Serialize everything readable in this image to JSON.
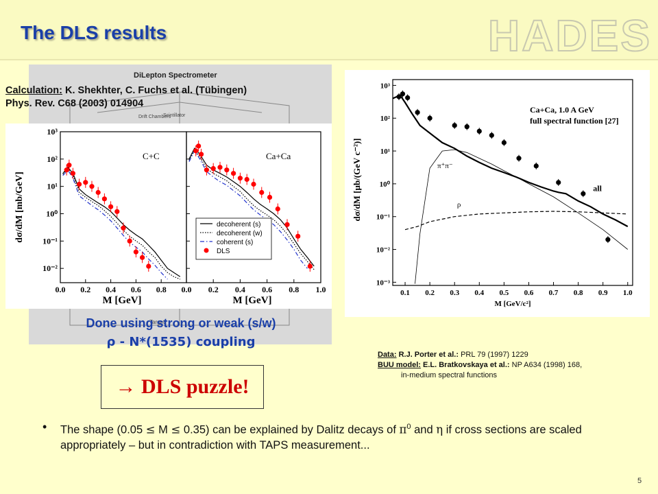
{
  "slide": {
    "title": "The DLS results",
    "logo_text": "HADES",
    "detector_title": "DiLepton Spectrometer",
    "detector_labels": [
      "Scintillator",
      "Drift Chambers"
    ],
    "detector_label_bottom": "Target",
    "calc_label": "Calculation:",
    "calc_authors": "K. Shekhter, C. Fuchs et al. (Tübingen)",
    "calc_ref": "Phys. Rev. C68 (2003) 014904",
    "caption_line1": "Done using strong or weak (s/w)",
    "caption_line2": "ρ - N*(1535) coupling",
    "refs": {
      "data_label": "Data:",
      "data_authors": "R.J. Porter et al.:",
      "data_journal": "PRL 79 (1997) 1229",
      "buu_label": "BUU model:",
      "buu_authors": "E.L. Bratkovskaya et al.:",
      "buu_journal": "NP A634 (1998) 168,",
      "buu_note": "in-medium spectral functions"
    },
    "puzzle": "→ DLS puzzle!",
    "bullet": {
      "t1": "The shape (0.05 ",
      "le": "≤",
      "t2": " M ",
      "t3": " 0.35) can be explained by Dalitz decays of ",
      "pi": "π",
      "sup": "0",
      "t4": " and ",
      "eta": "η",
      "t5": " if cross sections are scaled appropriately – but in contradiction with TAPS measurement..."
    },
    "page_number": "5"
  },
  "colors": {
    "title": "#1a3fa8",
    "data_red": "#ff0000",
    "coherent_blue": "#2233cc",
    "puzzle_red": "#cc0000"
  },
  "chart_data": [
    {
      "type": "line",
      "panel": "C+C",
      "xlabel": "M [GeV]",
      "ylabel": "dσ/dM [mb/GeV]",
      "xlim": [
        0,
        1.0
      ],
      "ylim": [
        0.003,
        1000
      ],
      "yscale": "log",
      "xticks": [
        "0.0",
        "0.2",
        "0.4",
        "0.6",
        "0.8"
      ],
      "yticks": [
        "10⁻²",
        "10⁻¹",
        "10⁰",
        "10¹",
        "10²",
        "10³"
      ],
      "series": [
        {
          "name": "decoherent (s)",
          "style": "solid",
          "x": [
            0.02,
            0.06,
            0.1,
            0.15,
            0.2,
            0.25,
            0.3,
            0.35,
            0.4,
            0.45,
            0.5,
            0.55,
            0.6,
            0.65,
            0.7,
            0.75,
            0.8,
            0.85,
            0.9,
            0.95
          ],
          "y": [
            30,
            50,
            30,
            8,
            5,
            3.5,
            2.5,
            1.8,
            1.2,
            0.7,
            0.4,
            0.25,
            0.17,
            0.12,
            0.07,
            0.04,
            0.02,
            0.01,
            0.007,
            0.005
          ]
        },
        {
          "name": "decoherent (w)",
          "style": "dotted",
          "x": [
            0.02,
            0.06,
            0.1,
            0.15,
            0.2,
            0.25,
            0.3,
            0.35,
            0.4,
            0.45,
            0.5,
            0.55,
            0.6,
            0.65,
            0.7,
            0.75,
            0.8,
            0.85,
            0.9,
            0.95
          ],
          "y": [
            28,
            45,
            25,
            6,
            4,
            2.8,
            2,
            1.3,
            0.8,
            0.45,
            0.25,
            0.15,
            0.1,
            0.07,
            0.04,
            0.025,
            0.012,
            0.007,
            0.005,
            0.004
          ]
        },
        {
          "name": "coherent (s)",
          "style": "dashdot",
          "x": [
            0.02,
            0.06,
            0.1,
            0.15,
            0.2,
            0.25,
            0.3,
            0.35,
            0.4,
            0.45,
            0.5,
            0.55,
            0.6,
            0.65,
            0.7,
            0.75,
            0.8,
            0.85
          ],
          "y": [
            25,
            40,
            20,
            4.5,
            3,
            2,
            1.4,
            0.9,
            0.55,
            0.3,
            0.16,
            0.09,
            0.06,
            0.04,
            0.022,
            0.013,
            0.007,
            0.004
          ]
        }
      ],
      "points": {
        "name": "DLS",
        "x": [
          0.05,
          0.07,
          0.1,
          0.15,
          0.2,
          0.25,
          0.3,
          0.35,
          0.4,
          0.45,
          0.5,
          0.55,
          0.6,
          0.65,
          0.7
        ],
        "y": [
          40,
          60,
          30,
          12,
          14,
          10,
          6,
          3.5,
          1.8,
          1.2,
          0.3,
          0.1,
          0.04,
          0.025,
          0.012
        ]
      },
      "legend": [
        "decoherent (s)",
        "decoherent (w)",
        "coherent (s)",
        "DLS"
      ],
      "legend_position": "bottom-right"
    },
    {
      "type": "line",
      "panel": "Ca+Ca",
      "xlabel": "M [GeV]",
      "xlim": [
        0,
        1.0
      ],
      "ylim": [
        0.003,
        1000
      ],
      "yscale": "log",
      "xticks": [
        "0.0",
        "0.2",
        "0.4",
        "0.6",
        "0.8",
        "1.0"
      ],
      "series": [
        {
          "name": "decoherent (s)",
          "style": "solid",
          "x": [
            0.02,
            0.06,
            0.1,
            0.15,
            0.2,
            0.25,
            0.3,
            0.35,
            0.4,
            0.45,
            0.5,
            0.55,
            0.6,
            0.65,
            0.7,
            0.75,
            0.8,
            0.85,
            0.9,
            0.95
          ],
          "y": [
            100,
            250,
            150,
            60,
            40,
            30,
            22,
            15,
            10,
            6,
            3.5,
            2.2,
            1.5,
            1.0,
            0.6,
            0.3,
            0.12,
            0.05,
            0.025,
            0.012
          ]
        },
        {
          "name": "decoherent (w)",
          "style": "dotted",
          "x": [
            0.02,
            0.06,
            0.1,
            0.15,
            0.2,
            0.25,
            0.3,
            0.35,
            0.4,
            0.45,
            0.5,
            0.55,
            0.6,
            0.65,
            0.7,
            0.75,
            0.8,
            0.85,
            0.9,
            0.95
          ],
          "y": [
            90,
            220,
            120,
            45,
            30,
            22,
            16,
            10,
            6.5,
            3.5,
            2,
            1.3,
            0.9,
            0.6,
            0.35,
            0.18,
            0.08,
            0.035,
            0.018,
            0.009
          ]
        },
        {
          "name": "coherent (s)",
          "style": "dashdot",
          "x": [
            0.02,
            0.06,
            0.1,
            0.15,
            0.2,
            0.25,
            0.3,
            0.35,
            0.4,
            0.45,
            0.5,
            0.55,
            0.6,
            0.65,
            0.7,
            0.75,
            0.8,
            0.85,
            0.9
          ],
          "y": [
            80,
            200,
            100,
            35,
            22,
            15,
            11,
            7,
            4.5,
            2.5,
            1.4,
            0.9,
            0.6,
            0.4,
            0.22,
            0.11,
            0.05,
            0.02,
            0.01
          ]
        }
      ],
      "points": {
        "name": "DLS",
        "x": [
          0.07,
          0.09,
          0.11,
          0.15,
          0.2,
          0.25,
          0.3,
          0.35,
          0.4,
          0.45,
          0.5,
          0.56,
          0.62,
          0.68,
          0.75,
          0.83,
          0.92
        ],
        "y": [
          200,
          300,
          150,
          40,
          45,
          50,
          40,
          30,
          20,
          18,
          12,
          6,
          4,
          1.5,
          0.4,
          0.15,
          0.012
        ]
      }
    },
    {
      "type": "line",
      "panel": "right",
      "xlabel": "M [GeV/c²]",
      "ylabel": "dσ/dM [μb/(GeV c⁻²)]",
      "xlim": [
        0.05,
        1.02
      ],
      "ylim": [
        0.0008,
        1500
      ],
      "yscale": "log",
      "xticks": [
        "0.1",
        "0.2",
        "0.3",
        "0.4",
        "0.5",
        "0.6",
        "0.7",
        "0.8",
        "0.9",
        "1.0"
      ],
      "yticks": [
        "10⁻³",
        "10⁻²",
        "10⁻¹",
        "10⁰",
        "10¹",
        "10²",
        "10³"
      ],
      "annotations": [
        "Ca+Ca, 1.0 A GeV",
        "full spectral function [27]"
      ],
      "series": [
        {
          "name": "all",
          "style": "thick",
          "x": [
            0.05,
            0.08,
            0.1,
            0.13,
            0.16,
            0.2,
            0.25,
            0.3,
            0.35,
            0.4,
            0.45,
            0.5,
            0.55,
            0.6,
            0.65,
            0.7,
            0.72,
            0.75,
            0.8,
            0.85,
            0.9,
            0.95,
            1.0
          ],
          "y": [
            400,
            500,
            300,
            130,
            60,
            35,
            18,
            12,
            7,
            4.5,
            3,
            2.2,
            1.6,
            1.1,
            0.8,
            0.6,
            0.55,
            0.5,
            0.3,
            0.2,
            0.12,
            0.08,
            0.05
          ]
        },
        {
          "name": "π⁺π⁻",
          "style": "thin",
          "x": [
            0.14,
            0.16,
            0.2,
            0.25,
            0.3,
            0.35,
            0.4,
            0.45,
            0.5,
            0.55,
            0.6,
            0.7,
            0.8,
            0.9,
            1.0
          ],
          "y": [
            0.0009,
            0.03,
            3,
            10,
            11,
            9,
            6,
            4,
            2.5,
            1.6,
            1.0,
            0.4,
            0.13,
            0.04,
            0.01
          ]
        },
        {
          "name": "ρ",
          "style": "dashed",
          "x": [
            0.1,
            0.15,
            0.2,
            0.3,
            0.4,
            0.5,
            0.6,
            0.7,
            0.8,
            0.9,
            1.0
          ],
          "y": [
            0.04,
            0.05,
            0.07,
            0.1,
            0.12,
            0.13,
            0.14,
            0.145,
            0.14,
            0.13,
            0.12
          ]
        }
      ],
      "points": {
        "name": "data",
        "x": [
          0.075,
          0.09,
          0.11,
          0.15,
          0.2,
          0.3,
          0.35,
          0.4,
          0.45,
          0.5,
          0.56,
          0.63,
          0.72,
          0.82,
          0.92
        ],
        "y": [
          450,
          550,
          420,
          150,
          100,
          60,
          55,
          40,
          30,
          18,
          6,
          3.5,
          1.1,
          0.5,
          0.02
        ]
      }
    }
  ]
}
